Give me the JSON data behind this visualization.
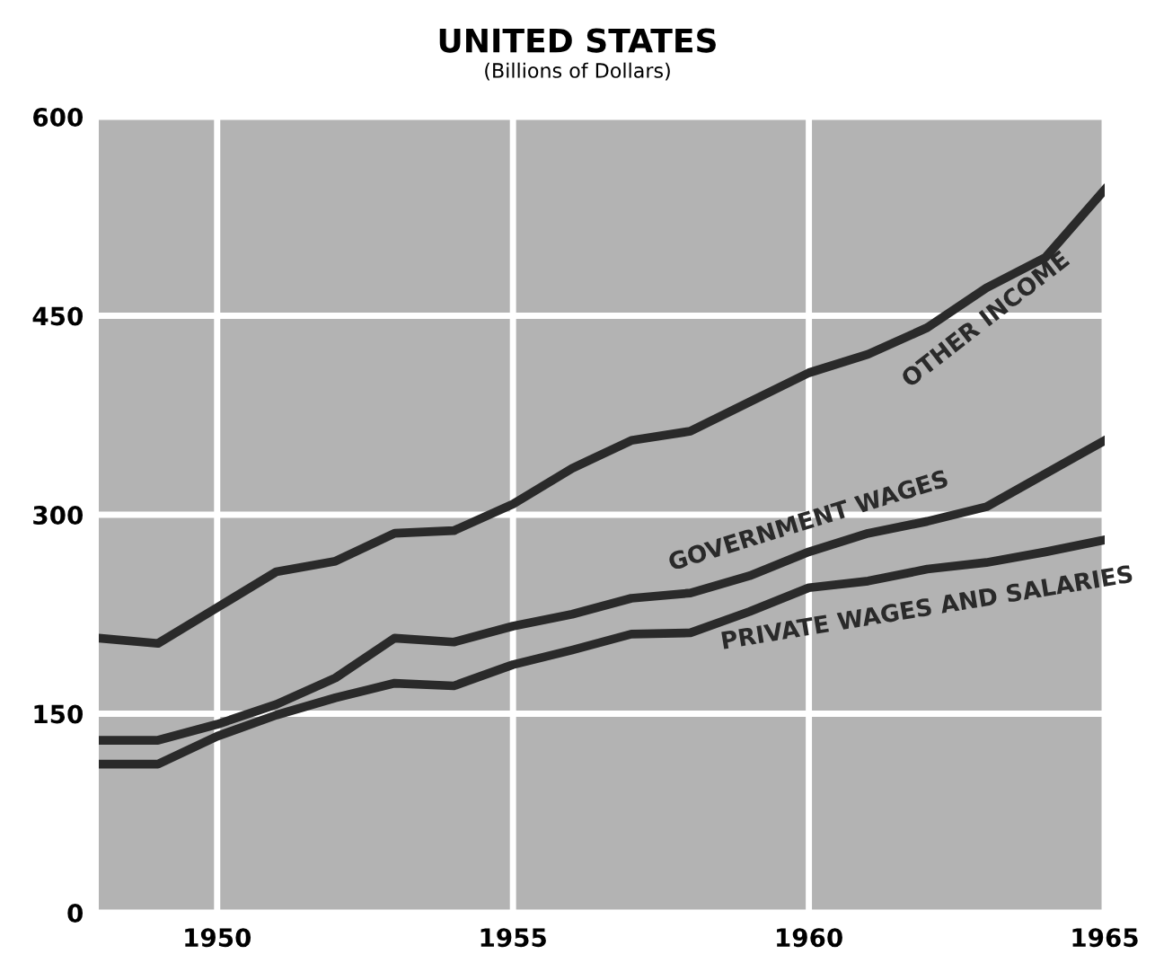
{
  "chart_data": {
    "type": "line",
    "title": "UNITED STATES",
    "subtitle": "(Billions of Dollars)",
    "x": [
      1948,
      1949,
      1950,
      1951,
      1952,
      1953,
      1954,
      1955,
      1956,
      1957,
      1958,
      1959,
      1960,
      1961,
      1962,
      1963,
      1964,
      1965
    ],
    "series": [
      {
        "name": "OTHER INCOME",
        "color": "#2a2a2a",
        "values": [
          207,
          203,
          230,
          257,
          265,
          286,
          288,
          308,
          335,
          356,
          363,
          385,
          407,
          421,
          441,
          471,
          494,
          545
        ]
      },
      {
        "name": "GOVERNMENT WAGES",
        "color": "#2a2a2a",
        "values": [
          130,
          130,
          142,
          157,
          177,
          207,
          204,
          216,
          225,
          237,
          241,
          254,
          272,
          286,
          295,
          306,
          331,
          356
        ]
      },
      {
        "name": "PRIVATE WAGES AND SALARIES",
        "color": "#2a2a2a",
        "values": [
          112,
          112,
          133,
          149,
          162,
          173,
          171,
          187,
          198,
          210,
          211,
          227,
          245,
          250,
          259,
          264,
          272,
          281
        ]
      }
    ],
    "xlim": [
      1948,
      1965
    ],
    "ylim": [
      0,
      600
    ],
    "xticks": [
      1950,
      1955,
      1960,
      1965
    ],
    "yticks": [
      0,
      150,
      300,
      450,
      600
    ],
    "grid": true,
    "marker": "none",
    "line_style": "solid",
    "legend": false
  }
}
